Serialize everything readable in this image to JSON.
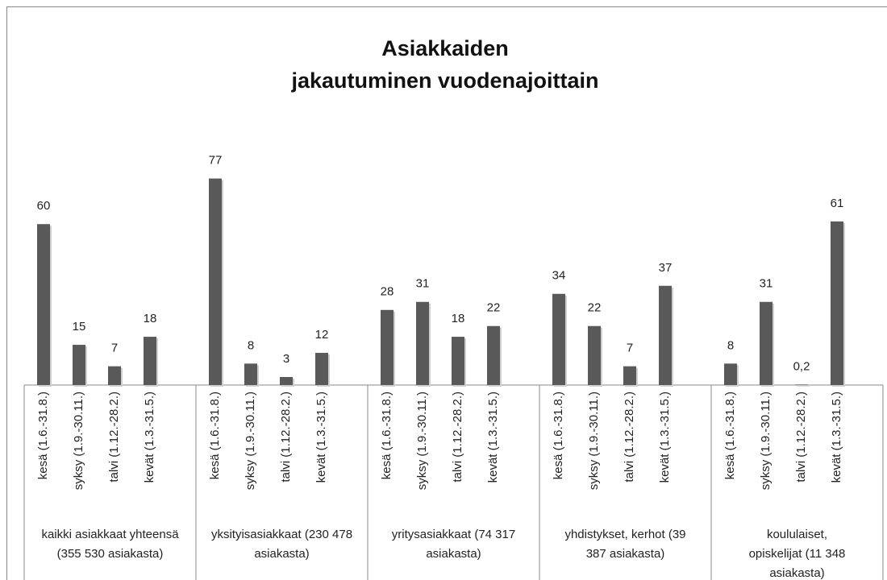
{
  "chart_data": {
    "type": "bar",
    "title": [
      "Asiakkaiden",
      "jakautuminen vuodenajoittain"
    ],
    "color": "#595959",
    "groups": [
      {
        "name": [
          "kaikki asiakkaat yhteensä",
          "(355 530 asiakasta)"
        ],
        "categories": [
          "kesä (1.6.-31.8.)",
          "syksy (1.9.-30.11.)",
          "talvi (1.12.-28.2.)",
          "kevät (1.3.-31.5.)"
        ],
        "values": [
          60,
          15,
          7,
          18
        ]
      },
      {
        "name": [
          "yksityisasiakkaat (230 478",
          "asiakasta)"
        ],
        "categories": [
          "kesä (1.6.-31.8.)",
          "syksy (1.9.-30.11.)",
          "talvi (1.12.-28.2.)",
          "kevät (1.3.-31.5.)"
        ],
        "values": [
          77,
          8,
          3,
          12
        ]
      },
      {
        "name": [
          "yritysasiakkaat (74 317",
          "asiakasta)"
        ],
        "categories": [
          "kesä (1.6.-31.8.)",
          "syksy (1.9.-30.11.)",
          "talvi (1.12.-28.2.)",
          "kevät (1.3.-31.5.)"
        ],
        "values": [
          28,
          31,
          18,
          22
        ]
      },
      {
        "name": [
          "yhdistykset, kerhot (39",
          "387 asiakasta)"
        ],
        "categories": [
          "kesä (1.6.-31.8.)",
          "syksy (1.9.-30.11.)",
          "talvi (1.12.-28.2.)",
          "kevät (1.3.-31.5.)"
        ],
        "values": [
          34,
          22,
          7,
          37
        ]
      },
      {
        "name": [
          "koululaiset,",
          "opiskelijat (11 348",
          "asiakasta)"
        ],
        "categories": [
          "kesä (1.6.-31.8.)",
          "syksy (1.9.-30.11.)",
          "talvi (1.12.-28.2.)",
          "kevät (1.3.-31.5.)"
        ],
        "values": [
          8,
          31,
          0.2,
          61
        ],
        "value_labels": [
          "8",
          "31",
          "0,2",
          "61"
        ]
      }
    ]
  }
}
